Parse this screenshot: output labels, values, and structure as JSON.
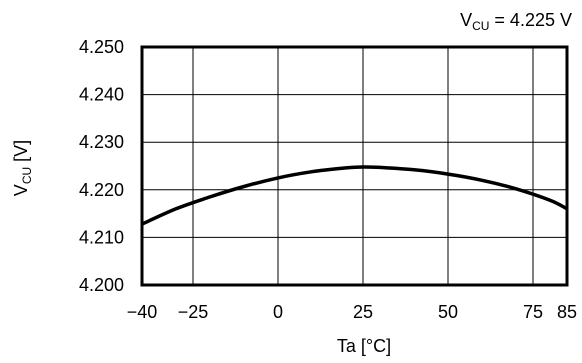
{
  "chart_data": {
    "type": "line",
    "condition": {
      "symbol": "V",
      "subscript": "CU",
      "text": " = 4.225 V"
    },
    "ylabel": {
      "symbol": "V",
      "subscript": "CU",
      "text": " [V]"
    },
    "xlabel": "Ta [°C]",
    "xlim": [
      -40,
      85
    ],
    "ylim": [
      4.2,
      4.25
    ],
    "xticks": [
      {
        "value": -40,
        "label": "−40"
      },
      {
        "value": -25,
        "label": "−25"
      },
      {
        "value": 0,
        "label": "0"
      },
      {
        "value": 25,
        "label": "25"
      },
      {
        "value": 50,
        "label": "50"
      },
      {
        "value": 75,
        "label": "75"
      },
      {
        "value": 85,
        "label": "85"
      }
    ],
    "yticks": [
      {
        "value": 4.2,
        "label": "4.200"
      },
      {
        "value": 4.21,
        "label": "4.210"
      },
      {
        "value": 4.22,
        "label": "4.220"
      },
      {
        "value": 4.23,
        "label": "4.230"
      },
      {
        "value": 4.24,
        "label": "4.240"
      },
      {
        "value": 4.25,
        "label": "4.250"
      }
    ],
    "grid": true,
    "series": [
      {
        "x": [
          -40,
          -30,
          -20,
          -10,
          0,
          10,
          20,
          25,
          30,
          40,
          50,
          60,
          70,
          80,
          85
        ],
        "y": [
          4.2128,
          4.216,
          4.2185,
          4.2207,
          4.2225,
          4.2238,
          4.2246,
          4.2248,
          4.2247,
          4.2242,
          4.2233,
          4.222,
          4.2202,
          4.2178,
          4.216
        ]
      }
    ]
  }
}
